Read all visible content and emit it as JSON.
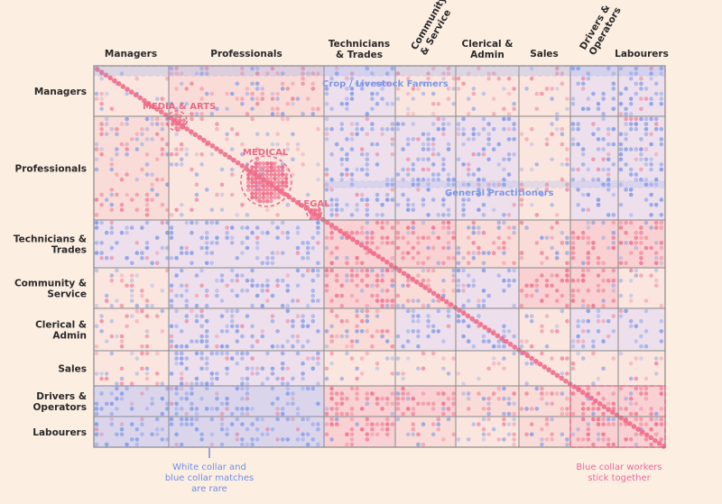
{
  "chart_data": {
    "type": "heatmap",
    "columns": [
      "Managers",
      "Professionals",
      "Technicians\n& Trades",
      "Community\n& Service",
      "Clerical &\nAdmin",
      "Sales",
      "Drivers &\nOperators",
      "Labourers"
    ],
    "rows": [
      "Managers",
      "Professionals",
      "Technicians &\nTrades",
      "Community &\nService",
      "Clerical &\nAdmin",
      "Sales",
      "Drivers &\nOperators",
      "Labourers"
    ],
    "annotations": {
      "media_arts": "MEDIA & ARTS",
      "medical": "MEDICAL",
      "legal": "LEGAL",
      "crop_livestock": "Crop / Livestock Farmers",
      "general_practitioners": "General Practitioners"
    },
    "notes": {
      "white_blue": [
        "White collar and",
        "blue collar matches",
        "are rare"
      ],
      "blue_collar": [
        "Blue collar workers",
        "stick together"
      ]
    },
    "colors": {
      "background": "#fdeee2",
      "high": "#ef6b8a",
      "low": "#7b97e8",
      "grid": "#888888"
    },
    "block_pattern": [
      [
        "n",
        "m",
        "l",
        "n",
        "n",
        "n",
        "l",
        "l"
      ],
      [
        "m",
        "n",
        "l",
        "l",
        "l",
        "n",
        "l",
        "l"
      ],
      [
        "l",
        "l",
        "h",
        "h",
        "m",
        "m",
        "h",
        "h"
      ],
      [
        "n",
        "l",
        "h",
        "m",
        "l",
        "h",
        "h",
        "n"
      ],
      [
        "n",
        "l",
        "m",
        "l",
        "l",
        "n",
        "l",
        "l"
      ],
      [
        "n",
        "l",
        "n",
        "n",
        "n",
        "n",
        "n",
        "n"
      ],
      [
        "l",
        "l",
        "h",
        "h",
        "m",
        "m",
        "h",
        "h"
      ],
      [
        "l",
        "l",
        "h",
        "m",
        "n",
        "m",
        "h",
        "h"
      ]
    ]
  }
}
